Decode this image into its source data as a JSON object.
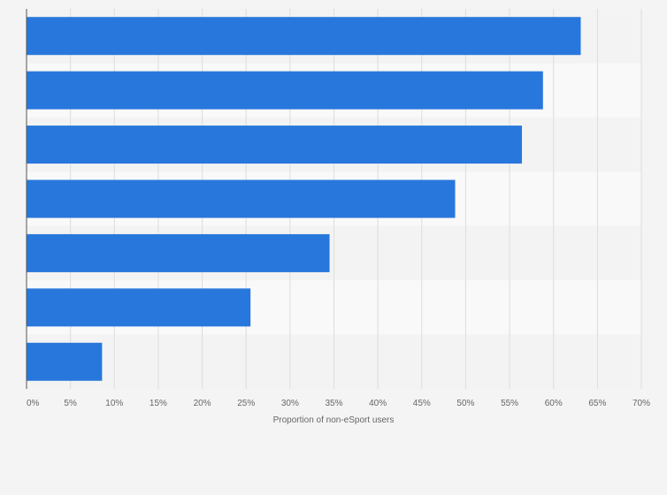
{
  "chart_data": {
    "type": "bar",
    "orientation": "horizontal",
    "title": "",
    "xlabel": "Proportion of non-eSport users",
    "ylabel": "",
    "xlim": [
      0,
      70
    ],
    "x_ticks": [
      0,
      5,
      10,
      15,
      20,
      25,
      30,
      35,
      40,
      45,
      50,
      55,
      60,
      65,
      70
    ],
    "x_tick_labels": [
      "0%",
      "5%",
      "10%",
      "15%",
      "20%",
      "25%",
      "30%",
      "35%",
      "40%",
      "45%",
      "50%",
      "55%",
      "60%",
      "65%",
      "70%"
    ],
    "categories": [
      "",
      "",
      "",
      "",
      "",
      "",
      ""
    ],
    "values": [
      63.1,
      58.8,
      56.4,
      48.8,
      34.5,
      25.5,
      8.6
    ],
    "grid": true,
    "legend": "none",
    "colors": {
      "bar": "#2877dc",
      "background": "#f4f4f4",
      "band_light": "#f9f9f9",
      "band_dark": "#f3f3f3",
      "grid": "#dddddd",
      "axis": "#555555",
      "text": "#666666"
    }
  }
}
